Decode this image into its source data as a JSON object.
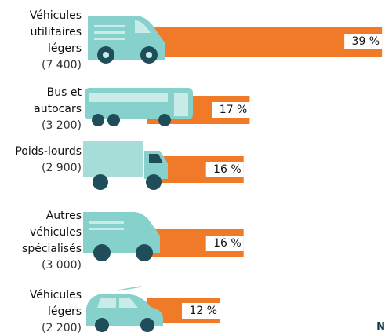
{
  "chart_data": {
    "type": "bar",
    "orientation": "horizontal",
    "categories": [
      "Véhicules utilitaires légers",
      "Bus et autocars",
      "Poids-lourds",
      "Autres véhicules spécialisés",
      "Véhicules légers"
    ],
    "count_labels": [
      "(7 400)",
      "(3 200)",
      "(2 900)",
      "(3 000)",
      "(2 200)"
    ],
    "values": [
      39,
      17,
      16,
      16,
      12
    ],
    "value_labels": [
      "39 %",
      "17 %",
      "16 %",
      "16 %",
      "12 %"
    ],
    "color": "#f07a27",
    "footnote": "N"
  }
}
